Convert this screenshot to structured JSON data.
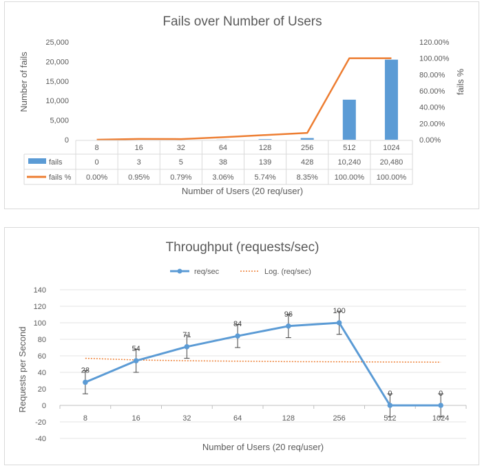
{
  "charts": [
    {
      "type": "bar+line",
      "title": "Fails over Number of Users",
      "categories": [
        "8",
        "16",
        "32",
        "64",
        "128",
        "256",
        "512",
        "1024"
      ],
      "series": [
        {
          "name": "fails",
          "type": "bar",
          "axis": "left",
          "values": [
            0,
            3,
            5,
            38,
            139,
            428,
            10240,
            20480
          ],
          "labels": [
            "0",
            "3",
            "5",
            "38",
            "139",
            "428",
            "10,240",
            "20,480"
          ],
          "color": "#5b9bd5"
        },
        {
          "name": "fails %",
          "type": "line",
          "axis": "right",
          "values": [
            0.0,
            0.95,
            0.79,
            3.06,
            5.74,
            8.35,
            100.0,
            100.0
          ],
          "labels": [
            "0.00%",
            "0.95%",
            "0.79%",
            "3.06%",
            "5.74%",
            "8.35%",
            "100.00%",
            "100.00%"
          ],
          "color": "#ed7d31"
        }
      ],
      "xlabel": "Number of Users (20 req/user)",
      "ylabel": "Number of fails",
      "y2label": "fails %",
      "ylim": [
        0,
        25000
      ],
      "yticks": [
        "0",
        "5,000",
        "10,000",
        "15,000",
        "20,000",
        "25,000"
      ],
      "y2lim": [
        0,
        120
      ],
      "y2ticks": [
        "0.00%",
        "20.00%",
        "40.00%",
        "60.00%",
        "80.00%",
        "100.00%",
        "120.00%"
      ],
      "data_table": true,
      "grid": false
    },
    {
      "type": "line",
      "title": "Throughput (requests/sec)",
      "categories": [
        "8",
        "16",
        "32",
        "64",
        "128",
        "256",
        "512",
        "1024"
      ],
      "series": [
        {
          "name": "req/sec",
          "values": [
            28,
            54,
            71,
            84,
            96,
            100,
            0,
            0
          ],
          "labels": [
            "28",
            "54",
            "71",
            "84",
            "96",
            "100",
            "0",
            "0"
          ],
          "error": 14,
          "color": "#5b9bd5"
        },
        {
          "name": "Log. (req/sec)",
          "type": "logarithmic-trendline",
          "values": [
            57,
            55,
            54,
            53.5,
            53,
            52.8,
            52.5,
            52.3
          ],
          "color": "#ed7d31"
        }
      ],
      "xlabel": "Number of Users (20 req/user)",
      "ylabel": "Requests per Second",
      "ylim": [
        -40,
        140
      ],
      "yticks": [
        "-40",
        "-20",
        "0",
        "20",
        "40",
        "60",
        "80",
        "100",
        "120",
        "140"
      ],
      "legend": "top",
      "grid": true
    }
  ]
}
